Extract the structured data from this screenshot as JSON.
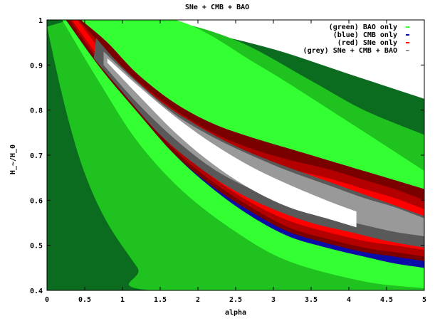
{
  "chart_data": {
    "type": "contour",
    "title": "SNe + CMB + BAO",
    "xlabel": "alpha",
    "ylabel": "H_~/H_0",
    "xlim": [
      0,
      5
    ],
    "ylim": [
      0.4,
      1
    ],
    "x_ticks": [
      0,
      0.5,
      1,
      1.5,
      2,
      2.5,
      3,
      3.5,
      4,
      4.5,
      5
    ],
    "x_tick_labels": [
      "0",
      "0.5",
      "1",
      "1.5",
      "2",
      "2.5",
      "3",
      "3.5",
      "4",
      "4.5",
      "5"
    ],
    "y_ticks": [
      0.4,
      0.5,
      0.6,
      0.7,
      0.8,
      0.9,
      1
    ],
    "y_tick_labels": [
      "0.4",
      "0.5",
      "0.6",
      "0.7",
      "0.8",
      "0.9",
      "1"
    ],
    "grid": false,
    "legend_position": "top-right",
    "colors": {
      "bao_outer": "#0b6b1e",
      "bao_mid": "#1fc21f",
      "bao_inner": "#33ff33",
      "cmb": "#0b0ba8",
      "sne_outer": "#7a0000",
      "sne_mid": "#b30000",
      "sne_inner": "#ff0000",
      "combined_outer": "#595959",
      "combined_mid": "#999999",
      "combined_inner": "#ffffff"
    },
    "series": [
      {
        "name": "(green) BAO only",
        "color": "#33ff33",
        "regions": [
          {
            "level": "outer",
            "color": "#0b6b1e",
            "upper": [
              [
                0,
                1
              ],
              [
                1,
                1
              ],
              [
                2,
                0.975
              ],
              [
                3,
                0.935
              ],
              [
                4,
                0.88
              ],
              [
                5,
                0.825
              ]
            ],
            "lower": [
              [
                0,
                0.4
              ],
              [
                5,
                0.4
              ]
            ]
          },
          {
            "level": "mid",
            "color": "#1fc21f",
            "upper": [
              [
                0.3,
                1
              ],
              [
                1.5,
                1
              ],
              [
                2.5,
                0.955
              ],
              [
                3.5,
                0.865
              ],
              [
                4.2,
                0.8
              ],
              [
                5,
                0.745
              ]
            ],
            "lower": [
              [
                0,
                0.985
              ],
              [
                0.25,
                0.8
              ],
              [
                0.5,
                0.66
              ],
              [
                0.8,
                0.55
              ],
              [
                1.2,
                0.45
              ],
              [
                1.4,
                0.4
              ],
              [
                5,
                0.4
              ]
            ]
          },
          {
            "level": "inner",
            "color": "#33ff33",
            "upper": [
              [
                0.5,
                1
              ],
              [
                1.7,
                1
              ],
              [
                2.8,
                0.9
              ],
              [
                3.8,
                0.795
              ],
              [
                5,
                0.665
              ]
            ],
            "lower": [
              [
                0.2,
                1
              ],
              [
                0.7,
                0.86
              ],
              [
                1.2,
                0.73
              ],
              [
                1.8,
                0.62
              ],
              [
                2.5,
                0.53
              ],
              [
                3.2,
                0.465
              ],
              [
                4.2,
                0.42
              ],
              [
                5,
                0.405
              ]
            ]
          }
        ]
      },
      {
        "name": "(blue) CMB only",
        "color": "#0b0ba8",
        "regions": [
          {
            "level": "band",
            "color": "#0b0ba8",
            "upper": [
              [
                0.45,
                1
              ],
              [
                0.7,
                0.955
              ],
              [
                1,
                0.895
              ],
              [
                1.5,
                0.82
              ],
              [
                2,
                0.77
              ],
              [
                2.5,
                0.73
              ],
              [
                3,
                0.7
              ],
              [
                3.5,
                0.675
              ],
              [
                4,
                0.645
              ],
              [
                4.5,
                0.615
              ],
              [
                5,
                0.59
              ]
            ],
            "lower": [
              [
                0.25,
                1
              ],
              [
                0.7,
                0.905
              ],
              [
                1.2,
                0.8
              ],
              [
                1.7,
                0.7
              ],
              [
                2.2,
                0.625
              ],
              [
                2.7,
                0.565
              ],
              [
                3.2,
                0.52
              ],
              [
                3.7,
                0.495
              ],
              [
                4.2,
                0.475
              ],
              [
                4.6,
                0.46
              ],
              [
                5,
                0.45
              ]
            ]
          }
        ]
      },
      {
        "name": "(red) SNe only",
        "color": "#ff0000",
        "regions": [
          {
            "level": "outer",
            "color": "#7a0000",
            "upper": [
              [
                0.45,
                1
              ],
              [
                0.8,
                0.95
              ],
              [
                1.2,
                0.88
              ],
              [
                1.7,
                0.815
              ],
              [
                2.2,
                0.77
              ],
              [
                2.7,
                0.74
              ],
              [
                3.2,
                0.715
              ],
              [
                3.7,
                0.69
              ],
              [
                4.2,
                0.665
              ],
              [
                4.6,
                0.645
              ],
              [
                5,
                0.625
              ]
            ],
            "lower": [
              [
                0.25,
                1
              ],
              [
                0.7,
                0.895
              ],
              [
                1.2,
                0.795
              ],
              [
                1.7,
                0.7
              ],
              [
                2.2,
                0.63
              ],
              [
                2.7,
                0.575
              ],
              [
                3.2,
                0.53
              ],
              [
                3.7,
                0.505
              ],
              [
                4.2,
                0.485
              ],
              [
                4.6,
                0.475
              ],
              [
                5,
                0.465
              ]
            ]
          },
          {
            "level": "mid",
            "color": "#b30000",
            "upper": [
              [
                0.42,
                1
              ],
              [
                0.8,
                0.93
              ],
              [
                1.2,
                0.865
              ],
              [
                1.7,
                0.8
              ],
              [
                2.2,
                0.75
              ],
              [
                2.7,
                0.715
              ],
              [
                3.2,
                0.69
              ],
              [
                3.7,
                0.67
              ],
              [
                4.2,
                0.645
              ],
              [
                4.6,
                0.625
              ],
              [
                5,
                0.6
              ]
            ],
            "lower": [
              [
                0.3,
                1
              ],
              [
                0.7,
                0.905
              ],
              [
                1.2,
                0.805
              ],
              [
                1.7,
                0.71
              ],
              [
                2.2,
                0.64
              ],
              [
                2.7,
                0.585
              ],
              [
                3.2,
                0.54
              ],
              [
                3.7,
                0.515
              ],
              [
                4.2,
                0.495
              ],
              [
                4.6,
                0.485
              ],
              [
                5,
                0.475
              ]
            ]
          },
          {
            "level": "inner",
            "color": "#ff0000",
            "upper": [
              [
                0.4,
                1
              ],
              [
                0.8,
                0.915
              ],
              [
                1.2,
                0.85
              ],
              [
                1.7,
                0.785
              ],
              [
                2.2,
                0.735
              ],
              [
                2.7,
                0.695
              ],
              [
                3.2,
                0.67
              ],
              [
                3.7,
                0.65
              ],
              [
                4.2,
                0.625
              ],
              [
                4.6,
                0.605
              ],
              [
                5,
                0.58
              ]
            ],
            "lower": [
              [
                0.33,
                1
              ],
              [
                0.7,
                0.915
              ],
              [
                1.2,
                0.815
              ],
              [
                1.7,
                0.72
              ],
              [
                2.2,
                0.65
              ],
              [
                2.7,
                0.595
              ],
              [
                3.2,
                0.555
              ],
              [
                3.7,
                0.53
              ],
              [
                4.2,
                0.51
              ],
              [
                4.6,
                0.5
              ],
              [
                5,
                0.49
              ]
            ]
          }
        ]
      },
      {
        "name": "(grey) SNe + CMB + BAO",
        "color": "#999999",
        "regions": [
          {
            "level": "outer",
            "color": "#595959",
            "upper": [
              [
                0.65,
                0.96
              ],
              [
                1,
                0.895
              ],
              [
                1.5,
                0.82
              ],
              [
                2,
                0.765
              ],
              [
                2.5,
                0.72
              ],
              [
                3,
                0.685
              ],
              [
                3.5,
                0.655
              ],
              [
                4,
                0.625
              ],
              [
                4.5,
                0.595
              ],
              [
                5,
                0.565
              ]
            ],
            "lower": [
              [
                0.62,
                0.915
              ],
              [
                1,
                0.84
              ],
              [
                1.5,
                0.745
              ],
              [
                2,
                0.675
              ],
              [
                2.5,
                0.62
              ],
              [
                3,
                0.58
              ],
              [
                3.5,
                0.55
              ],
              [
                4,
                0.53
              ],
              [
                4.5,
                0.51
              ],
              [
                5,
                0.495
              ]
            ]
          },
          {
            "level": "mid",
            "color": "#999999",
            "upper": [
              [
                0.75,
                0.93
              ],
              [
                1.2,
                0.86
              ],
              [
                1.7,
                0.79
              ],
              [
                2.2,
                0.74
              ],
              [
                2.7,
                0.7
              ],
              [
                3.2,
                0.665
              ],
              [
                3.7,
                0.635
              ],
              [
                4.2,
                0.605
              ],
              [
                4.6,
                0.585
              ],
              [
                5,
                0.56
              ]
            ],
            "lower": [
              [
                0.75,
                0.9
              ],
              [
                1.2,
                0.815
              ],
              [
                1.7,
                0.735
              ],
              [
                2.2,
                0.67
              ],
              [
                2.7,
                0.625
              ],
              [
                3.2,
                0.59
              ],
              [
                3.7,
                0.565
              ],
              [
                4.2,
                0.545
              ],
              [
                4.6,
                0.53
              ],
              [
                5,
                0.52
              ]
            ]
          },
          {
            "level": "inner",
            "color": "#ffffff",
            "upper": [
              [
                0.8,
                0.915
              ],
              [
                1.2,
                0.855
              ],
              [
                1.7,
                0.785
              ],
              [
                2.2,
                0.725
              ],
              [
                2.7,
                0.675
              ],
              [
                3.2,
                0.635
              ],
              [
                3.7,
                0.6
              ],
              [
                4.1,
                0.575
              ]
            ],
            "lower": [
              [
                0.8,
                0.905
              ],
              [
                1.2,
                0.835
              ],
              [
                1.7,
                0.75
              ],
              [
                2.2,
                0.68
              ],
              [
                2.7,
                0.625
              ],
              [
                3.2,
                0.585
              ],
              [
                3.7,
                0.56
              ],
              [
                4.1,
                0.54
              ]
            ]
          }
        ]
      }
    ]
  }
}
